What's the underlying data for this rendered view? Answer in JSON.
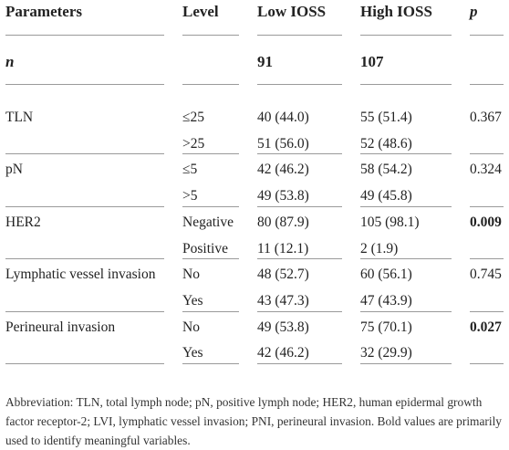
{
  "table": {
    "header": [
      "Parameters",
      "Level",
      "Low IOSS",
      "High IOSS",
      "p"
    ],
    "n_row": [
      "n",
      null,
      "91",
      "107",
      null
    ],
    "groups": [
      {
        "parameter": "TLN",
        "rows": [
          [
            "≤25",
            "40 (44.0)",
            "55 (51.4)",
            "0.367"
          ],
          [
            ">25",
            "51 (56.0)",
            "52 (48.6)",
            null
          ]
        ]
      },
      {
        "parameter": "pN",
        "rows": [
          [
            "≤5",
            "42 (46.2)",
            "58 (54.2)",
            "0.324"
          ],
          [
            ">5",
            "49 (53.8)",
            "49 (45.8)",
            null
          ]
        ]
      },
      {
        "parameter": "HER2",
        "rows": [
          [
            "Negative",
            "80 (87.9)",
            "105 (98.1)",
            {
              "text": "0.009",
              "bold": true
            }
          ],
          [
            "Positive",
            "11 (12.1)",
            "2 (1.9)",
            null
          ]
        ]
      },
      {
        "parameter": "Lymphatic vessel invasion",
        "rows": [
          [
            "No",
            "48 (52.7)",
            "60 (56.1)",
            "0.745"
          ],
          [
            "Yes",
            "43 (47.3)",
            "47 (43.9)",
            null
          ]
        ]
      },
      {
        "parameter": "Perineural invasion",
        "rows": [
          [
            "No",
            "49 (53.8)",
            "75 (70.1)",
            {
              "text": "0.027",
              "bold": true
            }
          ],
          [
            "Yes",
            "42 (46.2)",
            "32 (29.9)",
            null
          ]
        ]
      }
    ]
  },
  "footnote": "Abbreviation: TLN, total lymph node; pN, positive lymph node; HER2, human epidermal growth factor receptor-2; LVI, lymphatic vessel invasion; PNI, perineural invasion. Bold values are primarily used to identify meaningful variables."
}
